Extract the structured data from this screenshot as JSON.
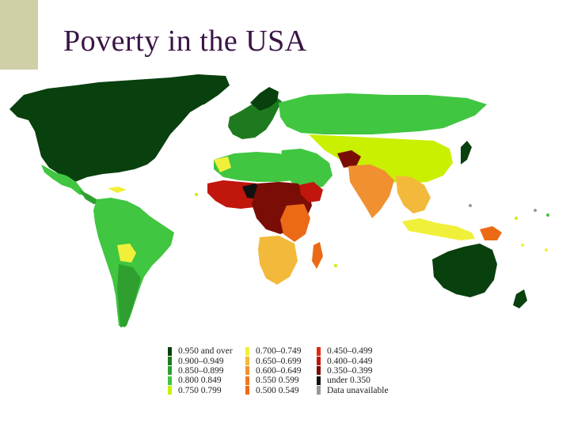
{
  "slide": {
    "title": "Poverty in the USA",
    "accent_color": "#cfcfa8",
    "title_color": "#3a1446"
  },
  "map": {
    "type": "choropleth world map"
  },
  "legend": {
    "columns": [
      [
        {
          "label": "0.950 and over",
          "color": "#08400e"
        },
        {
          "label": "0.900–0.949",
          "color": "#1e7a1e"
        },
        {
          "label": "0.850–0.899",
          "color": "#2fa02f"
        },
        {
          "label": "0.800  0.849",
          "color": "#40c640"
        },
        {
          "label": "0.750  0.799",
          "color": "#c8f000"
        }
      ],
      [
        {
          "label": "0.700–0.749",
          "color": "#f0f03a"
        },
        {
          "label": "0.650–0.699",
          "color": "#f3b93a"
        },
        {
          "label": "0.600–0.649",
          "color": "#f09030"
        },
        {
          "label": "0.550  0.599",
          "color": "#ef7a20"
        },
        {
          "label": "0.500  0.549",
          "color": "#ec6a16"
        }
      ],
      [
        {
          "label": "0.450–0.499",
          "color": "#e02a10"
        },
        {
          "label": "0.400–0.449",
          "color": "#c0160c"
        },
        {
          "label": "0.350–0.399",
          "color": "#7a0e06"
        },
        {
          "label": "under 0.350",
          "color": "#111111"
        },
        {
          "label": "Data unavailable",
          "color": "#9a9a9a"
        }
      ]
    ]
  }
}
